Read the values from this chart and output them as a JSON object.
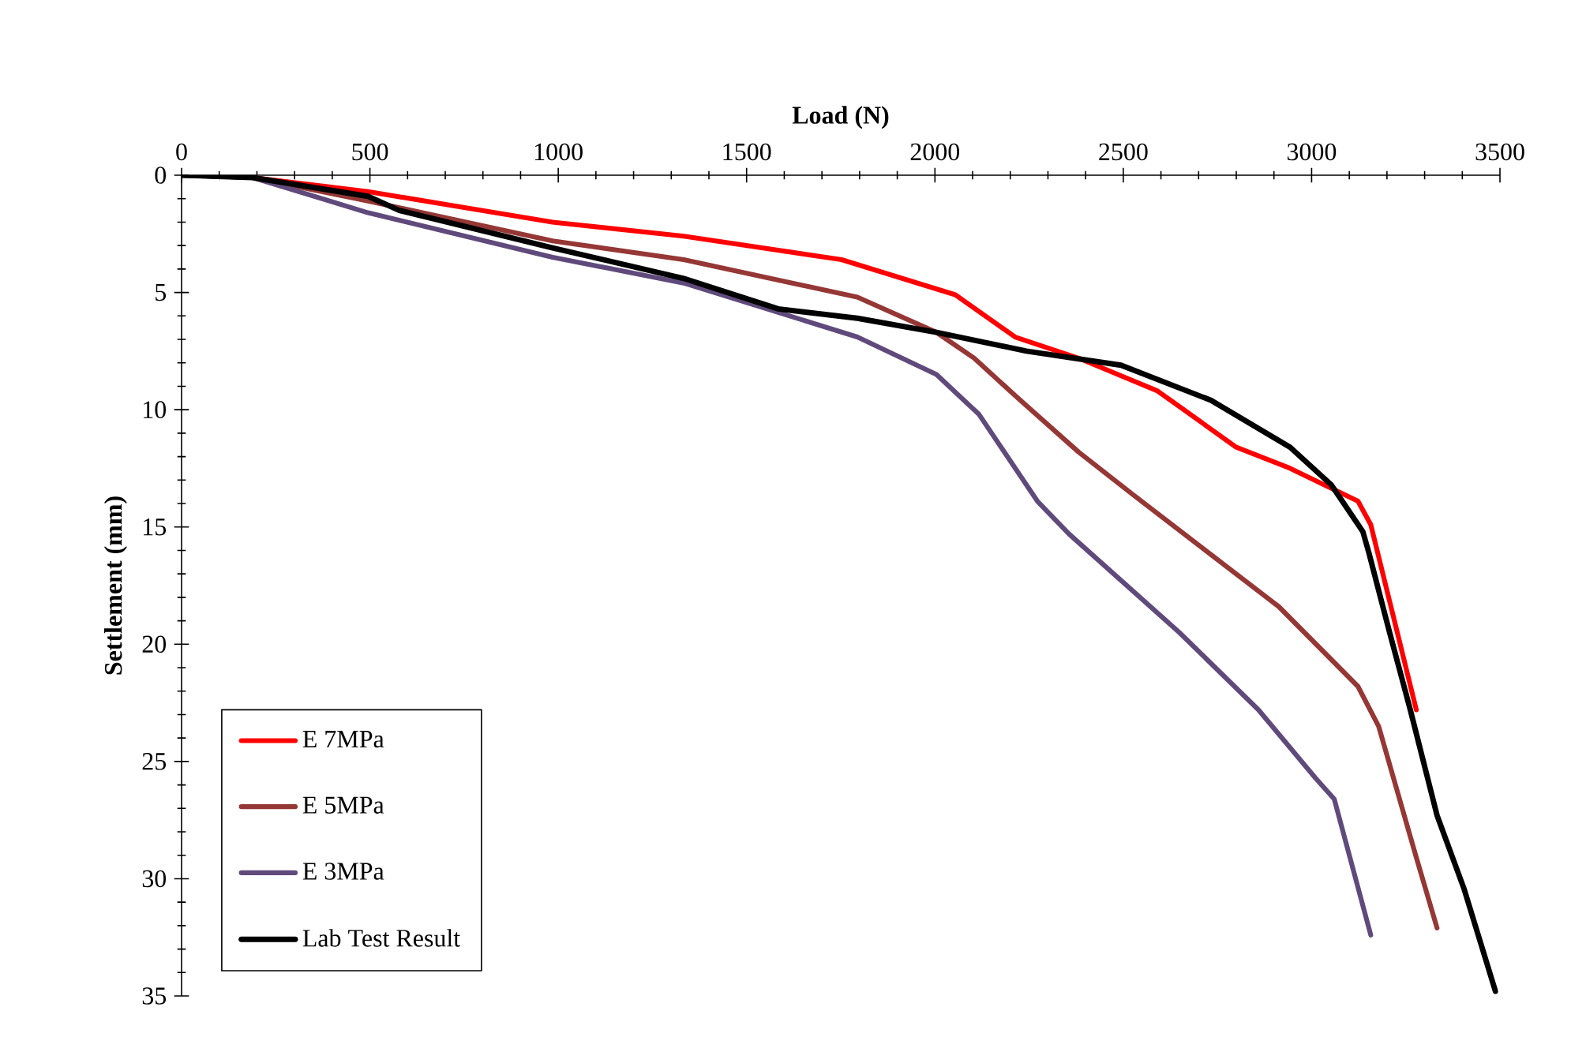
{
  "chart_data": {
    "type": "line",
    "xlabel": "Load (N)",
    "ylabel": "Settlement (mm)",
    "xlim": [
      0,
      3500
    ],
    "ylim": [
      35,
      0
    ],
    "xticks": [
      0,
      500,
      1000,
      1500,
      2000,
      2500,
      3000,
      3500
    ],
    "yticks": [
      0,
      5,
      10,
      15,
      20,
      25,
      30,
      35
    ],
    "legend": "bottom left",
    "series": [
      {
        "name": "E 7MPa",
        "color": "#ff0000",
        "x": [
          0,
          189,
          495,
          985,
          1333,
          1752,
          2054,
          2213,
          2381,
          2591,
          2800,
          2943,
          3123,
          3157,
          3278
        ],
        "values": [
          0,
          0.1,
          0.7,
          2.0,
          2.6,
          3.6,
          5.1,
          6.9,
          7.8,
          9.2,
          11.6,
          12.5,
          13.9,
          14.9,
          22.8
        ]
      },
      {
        "name": "E 5MPa",
        "color": "#953735",
        "x": [
          0,
          189,
          495,
          985,
          1333,
          1794,
          2004,
          2104,
          2213,
          2381,
          2524,
          2913,
          3123,
          3178,
          3278,
          3333
        ],
        "values": [
          0,
          0.1,
          1.1,
          2.8,
          3.6,
          5.2,
          6.7,
          7.8,
          9.4,
          11.8,
          13.6,
          18.4,
          21.8,
          23.5,
          29.1,
          32.1
        ]
      },
      {
        "name": "E 3MPa",
        "color": "#604a7b",
        "x": [
          0,
          189,
          495,
          985,
          1333,
          1794,
          2004,
          2117,
          2272,
          2356,
          2649,
          2859,
          3010,
          3060,
          3157
        ],
        "values": [
          0,
          0.1,
          1.6,
          3.5,
          4.6,
          6.9,
          8.5,
          10.2,
          13.9,
          15.3,
          19.5,
          22.8,
          25.7,
          26.6,
          32.4
        ]
      },
      {
        "name": "Lab Test Result",
        "color": "#000000",
        "x": [
          0,
          189,
          495,
          578,
          985,
          1333,
          1584,
          1794,
          2004,
          2243,
          2494,
          2733,
          2943,
          3052,
          3136,
          3152,
          3207,
          3262,
          3333,
          3404,
          3488
        ],
        "values": [
          0,
          0.1,
          0.9,
          1.5,
          3.1,
          4.4,
          5.7,
          6.1,
          6.7,
          7.5,
          8.1,
          9.6,
          11.6,
          13.2,
          15.2,
          16.1,
          19.5,
          22.8,
          27.3,
          30.4,
          34.8
        ]
      }
    ]
  }
}
